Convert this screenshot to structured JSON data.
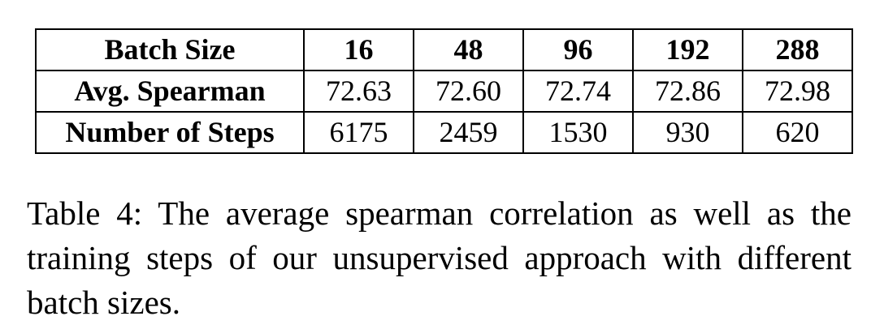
{
  "table": {
    "header": {
      "label": "Batch Size",
      "values": [
        "16",
        "48",
        "96",
        "192",
        "288"
      ]
    },
    "rows": [
      {
        "label": "Avg. Spearman",
        "values": [
          "72.63",
          "72.60",
          "72.74",
          "72.86",
          "72.98"
        ]
      },
      {
        "label": "Number of Steps",
        "values": [
          "6175",
          "2459",
          "1530",
          "930",
          "620"
        ]
      }
    ]
  },
  "caption": "Table 4: The average spearman correlation as well as the training steps of our unsupervised approach with different batch sizes."
}
